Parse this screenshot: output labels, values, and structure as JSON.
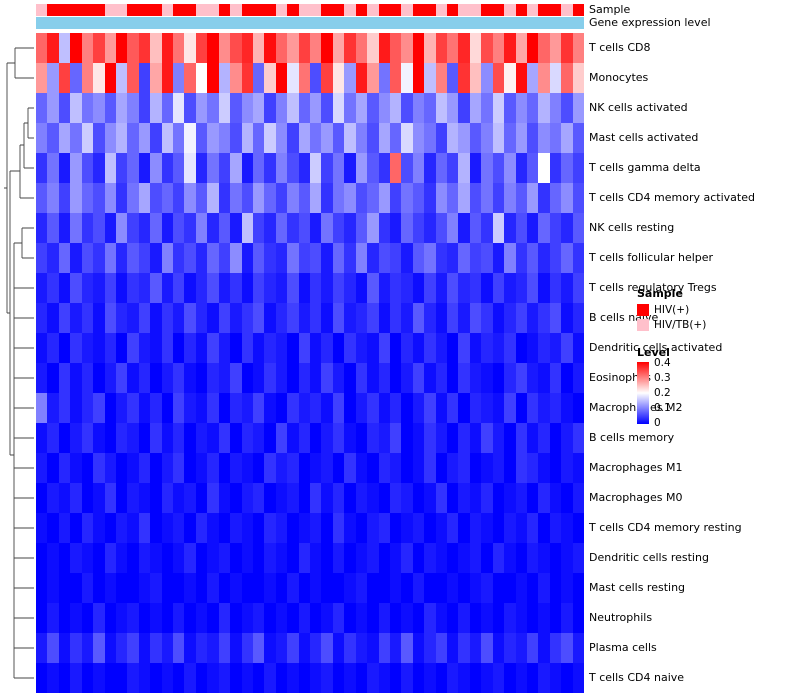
{
  "chart_data": {
    "type": "heatmap",
    "title": "",
    "n_cols": 48,
    "rows": [
      "T cells CD8",
      "Monocytes",
      "NK cells activated",
      "Mast cells activated",
      "T cells gamma delta",
      "T cells CD4 memory activated",
      "NK cells resting",
      "T cells follicular helper",
      "T cells regulatory  Tregs",
      "B cells naive",
      "Dendritic cells activated",
      "Eosinophils",
      "Macrophages M2",
      "B cells memory",
      "Macrophages M1",
      "Macrophages M0",
      "T cells CD4 memory resting",
      "Dendritic cells resting",
      "Mast cells resting",
      "Neutrophils",
      "Plasma cells",
      "T cells CD4 naive"
    ],
    "color_scale": {
      "domain": [
        0,
        0.2,
        0.4
      ],
      "colors": [
        "#0000FF",
        "#FFFFFF",
        "#FF0000"
      ]
    },
    "col_annotations": {
      "sample": {
        "label": "Sample",
        "groups": [
          "HIV(+)",
          "HIV/TB(+)"
        ],
        "colors": [
          "#FF0000",
          "#FFC0CB"
        ],
        "assignment": [
          1,
          0,
          0,
          0,
          0,
          0,
          1,
          1,
          0,
          0,
          0,
          1,
          0,
          0,
          1,
          1,
          0,
          1,
          0,
          0,
          0,
          1,
          0,
          1,
          1,
          0,
          0,
          1,
          0,
          1,
          0,
          0,
          1,
          0,
          0,
          1,
          0,
          1,
          1,
          0,
          0,
          1,
          0,
          1,
          0,
          0,
          1,
          0
        ]
      },
      "gene_expression": {
        "label": "Gene expression level",
        "color": "#87CEEB"
      }
    },
    "legend": {
      "sample_title": "Sample",
      "level_title": "Level",
      "level_ticks": [
        "0.4",
        "0.3",
        "0.2",
        "0.1",
        "0"
      ]
    },
    "values": [
      [
        0.32,
        0.38,
        0.15,
        0.42,
        0.3,
        0.35,
        0.28,
        0.4,
        0.33,
        0.36,
        0.25,
        0.38,
        0.31,
        0.22,
        0.35,
        0.41,
        0.29,
        0.34,
        0.37,
        0.26,
        0.39,
        0.32,
        0.28,
        0.35,
        0.3,
        0.43,
        0.27,
        0.36,
        0.31,
        0.24,
        0.38,
        0.33,
        0.29,
        0.4,
        0.26,
        0.35,
        0.31,
        0.37,
        0.23,
        0.34,
        0.3,
        0.38,
        0.27,
        0.41,
        0.32,
        0.28,
        0.36,
        0.3
      ],
      [
        0.28,
        0.12,
        0.35,
        0.08,
        0.3,
        0.22,
        0.4,
        0.15,
        0.33,
        0.05,
        0.27,
        0.38,
        0.1,
        0.32,
        0.2,
        0.45,
        0.14,
        0.29,
        0.36,
        0.08,
        0.24,
        0.4,
        0.18,
        0.31,
        0.06,
        0.35,
        0.22,
        0.12,
        0.38,
        0.28,
        0.09,
        0.33,
        0.19,
        0.41,
        0.15,
        0.3,
        0.07,
        0.36,
        0.25,
        0.11,
        0.34,
        0.21,
        0.39,
        0.13,
        0.29,
        0.17,
        0.32,
        0.24
      ],
      [
        0.08,
        0.12,
        0.06,
        0.15,
        0.09,
        0.11,
        0.07,
        0.13,
        0.1,
        0.05,
        0.14,
        0.08,
        0.18,
        0.06,
        0.12,
        0.09,
        0.16,
        0.07,
        0.11,
        0.13,
        0.05,
        0.1,
        0.15,
        0.08,
        0.12,
        0.06,
        0.17,
        0.09,
        0.13,
        0.07,
        0.11,
        0.14,
        0.06,
        0.1,
        0.08,
        0.15,
        0.12,
        0.05,
        0.13,
        0.09,
        0.16,
        0.07,
        0.11,
        0.08,
        0.14,
        0.1,
        0.06,
        0.12
      ],
      [
        0.1,
        0.07,
        0.13,
        0.09,
        0.16,
        0.06,
        0.11,
        0.14,
        0.08,
        0.12,
        0.05,
        0.15,
        0.09,
        0.19,
        0.07,
        0.12,
        0.1,
        0.06,
        0.14,
        0.08,
        0.16,
        0.11,
        0.05,
        0.13,
        0.09,
        0.12,
        0.07,
        0.15,
        0.1,
        0.06,
        0.13,
        0.08,
        0.17,
        0.11,
        0.09,
        0.05,
        0.14,
        0.12,
        0.07,
        0.1,
        0.15,
        0.08,
        0.12,
        0.06,
        0.11,
        0.09,
        0.13,
        0.07
      ],
      [
        0.04,
        0.09,
        0.02,
        0.12,
        0.06,
        0.03,
        0.15,
        0.05,
        0.08,
        0.02,
        0.11,
        0.04,
        0.07,
        0.18,
        0.03,
        0.09,
        0.05,
        0.13,
        0.02,
        0.08,
        0.04,
        0.1,
        0.06,
        0.03,
        0.16,
        0.05,
        0.09,
        0.02,
        0.12,
        0.07,
        0.04,
        0.32,
        0.06,
        0.1,
        0.03,
        0.08,
        0.05,
        0.14,
        0.02,
        0.09,
        0.06,
        0.11,
        0.03,
        0.07,
        0.2,
        0.04,
        0.08,
        0.05
      ],
      [
        0.07,
        0.1,
        0.05,
        0.12,
        0.08,
        0.06,
        0.11,
        0.04,
        0.09,
        0.13,
        0.06,
        0.08,
        0.05,
        0.11,
        0.07,
        0.14,
        0.04,
        0.09,
        0.06,
        0.12,
        0.08,
        0.05,
        0.1,
        0.07,
        0.13,
        0.04,
        0.09,
        0.11,
        0.06,
        0.08,
        0.12,
        0.05,
        0.09,
        0.07,
        0.04,
        0.11,
        0.08,
        0.13,
        0.06,
        0.09,
        0.05,
        0.1,
        0.07,
        0.12,
        0.04,
        0.08,
        0.11,
        0.06
      ],
      [
        0.03,
        0.07,
        0.02,
        0.09,
        0.04,
        0.06,
        0.02,
        0.11,
        0.05,
        0.03,
        0.08,
        0.02,
        0.06,
        0.04,
        0.1,
        0.03,
        0.07,
        0.02,
        0.15,
        0.05,
        0.03,
        0.08,
        0.04,
        0.06,
        0.02,
        0.09,
        0.05,
        0.03,
        0.07,
        0.12,
        0.04,
        0.02,
        0.08,
        0.05,
        0.03,
        0.06,
        0.1,
        0.02,
        0.07,
        0.04,
        0.16,
        0.03,
        0.06,
        0.02,
        0.08,
        0.05,
        0.03,
        0.07
      ],
      [
        0.05,
        0.03,
        0.08,
        0.02,
        0.06,
        0.04,
        0.09,
        0.03,
        0.07,
        0.05,
        0.02,
        0.1,
        0.04,
        0.06,
        0.03,
        0.08,
        0.05,
        0.11,
        0.02,
        0.07,
        0.04,
        0.03,
        0.09,
        0.05,
        0.06,
        0.02,
        0.08,
        0.04,
        0.1,
        0.03,
        0.06,
        0.05,
        0.02,
        0.07,
        0.09,
        0.04,
        0.03,
        0.08,
        0.05,
        0.06,
        0.02,
        0.1,
        0.04,
        0.07,
        0.03,
        0.05,
        0.08,
        0.04
      ],
      [
        0.02,
        0.04,
        0.01,
        0.06,
        0.03,
        0.02,
        0.05,
        0.01,
        0.04,
        0.03,
        0.07,
        0.02,
        0.05,
        0.01,
        0.03,
        0.06,
        0.02,
        0.04,
        0.01,
        0.05,
        0.03,
        0.02,
        0.06,
        0.01,
        0.04,
        0.02,
        0.05,
        0.03,
        0.01,
        0.07,
        0.02,
        0.04,
        0.03,
        0.01,
        0.05,
        0.02,
        0.06,
        0.03,
        0.04,
        0.01,
        0.05,
        0.02,
        0.03,
        0.06,
        0.01,
        0.04,
        0.02,
        0.05
      ],
      [
        0.03,
        0.01,
        0.05,
        0.02,
        0.04,
        0.01,
        0.06,
        0.03,
        0.02,
        0.05,
        0.01,
        0.04,
        0.02,
        0.06,
        0.03,
        0.01,
        0.05,
        0.02,
        0.04,
        0.06,
        0.01,
        0.03,
        0.05,
        0.02,
        0.04,
        0.01,
        0.06,
        0.02,
        0.03,
        0.05,
        0.01,
        0.04,
        0.02,
        0.07,
        0.03,
        0.01,
        0.05,
        0.02,
        0.06,
        0.04,
        0.01,
        0.03,
        0.05,
        0.02,
        0.04,
        0.06,
        0.01,
        0.03
      ],
      [
        0.01,
        0.03,
        0.0,
        0.04,
        0.02,
        0.01,
        0.03,
        0.0,
        0.05,
        0.02,
        0.01,
        0.04,
        0.0,
        0.03,
        0.01,
        0.05,
        0.02,
        0.0,
        0.04,
        0.01,
        0.03,
        0.02,
        0.0,
        0.05,
        0.01,
        0.03,
        0.0,
        0.04,
        0.02,
        0.01,
        0.05,
        0.0,
        0.03,
        0.01,
        0.04,
        0.02,
        0.0,
        0.05,
        0.01,
        0.03,
        0.02,
        0.04,
        0.0,
        0.01,
        0.03,
        0.02,
        0.05,
        0.01
      ],
      [
        0.02,
        0.0,
        0.04,
        0.01,
        0.03,
        0.0,
        0.02,
        0.05,
        0.01,
        0.03,
        0.0,
        0.02,
        0.04,
        0.01,
        0.0,
        0.03,
        0.02,
        0.05,
        0.0,
        0.01,
        0.04,
        0.02,
        0.0,
        0.03,
        0.01,
        0.05,
        0.02,
        0.0,
        0.04,
        0.01,
        0.03,
        0.0,
        0.02,
        0.05,
        0.01,
        0.03,
        0.0,
        0.04,
        0.02,
        0.01,
        0.0,
        0.03,
        0.05,
        0.02,
        0.01,
        0.04,
        0.0,
        0.02
      ],
      [
        0.1,
        0.02,
        0.04,
        0.01,
        0.03,
        0.05,
        0.0,
        0.02,
        0.04,
        0.01,
        0.03,
        0.0,
        0.05,
        0.02,
        0.01,
        0.04,
        0.0,
        0.03,
        0.02,
        0.05,
        0.01,
        0.0,
        0.04,
        0.02,
        0.03,
        0.01,
        0.05,
        0.0,
        0.02,
        0.04,
        0.01,
        0.03,
        0.0,
        0.02,
        0.05,
        0.01,
        0.04,
        0.0,
        0.03,
        0.02,
        0.01,
        0.05,
        0.0,
        0.04,
        0.02,
        0.03,
        0.01,
        0.0
      ],
      [
        0.01,
        0.03,
        0.0,
        0.02,
        0.04,
        0.01,
        0.0,
        0.03,
        0.02,
        0.0,
        0.04,
        0.01,
        0.03,
        0.0,
        0.02,
        0.01,
        0.04,
        0.0,
        0.03,
        0.02,
        0.0,
        0.05,
        0.01,
        0.03,
        0.0,
        0.02,
        0.04,
        0.01,
        0.0,
        0.03,
        0.02,
        0.05,
        0.0,
        0.01,
        0.04,
        0.02,
        0.0,
        0.03,
        0.01,
        0.05,
        0.02,
        0.0,
        0.04,
        0.01,
        0.03,
        0.0,
        0.02,
        0.04
      ],
      [
        0.02,
        0.0,
        0.03,
        0.01,
        0.0,
        0.04,
        0.02,
        0.0,
        0.01,
        0.03,
        0.0,
        0.02,
        0.04,
        0.0,
        0.01,
        0.03,
        0.0,
        0.02,
        0.01,
        0.0,
        0.04,
        0.02,
        0.03,
        0.0,
        0.01,
        0.02,
        0.0,
        0.04,
        0.01,
        0.0,
        0.03,
        0.02,
        0.0,
        0.01,
        0.04,
        0.0,
        0.02,
        0.03,
        0.0,
        0.01,
        0.02,
        0.0,
        0.04,
        0.03,
        0.01,
        0.0,
        0.02,
        0.01
      ],
      [
        0.0,
        0.02,
        0.01,
        0.03,
        0.0,
        0.01,
        0.04,
        0.0,
        0.02,
        0.01,
        0.0,
        0.03,
        0.01,
        0.02,
        0.0,
        0.04,
        0.01,
        0.0,
        0.02,
        0.03,
        0.0,
        0.01,
        0.02,
        0.0,
        0.04,
        0.01,
        0.03,
        0.0,
        0.02,
        0.01,
        0.0,
        0.03,
        0.02,
        0.0,
        0.01,
        0.04,
        0.0,
        0.02,
        0.01,
        0.03,
        0.0,
        0.01,
        0.02,
        0.0,
        0.03,
        0.01,
        0.0,
        0.02
      ],
      [
        0.01,
        0.0,
        0.02,
        0.0,
        0.03,
        0.01,
        0.0,
        0.02,
        0.01,
        0.04,
        0.0,
        0.01,
        0.02,
        0.0,
        0.03,
        0.01,
        0.0,
        0.02,
        0.01,
        0.0,
        0.03,
        0.02,
        0.0,
        0.01,
        0.02,
        0.0,
        0.04,
        0.01,
        0.0,
        0.02,
        0.03,
        0.0,
        0.01,
        0.02,
        0.0,
        0.01,
        0.03,
        0.0,
        0.02,
        0.01,
        0.0,
        0.02,
        0.01,
        0.03,
        0.0,
        0.02,
        0.01,
        0.0
      ],
      [
        0.0,
        0.01,
        0.0,
        0.02,
        0.01,
        0.0,
        0.03,
        0.01,
        0.0,
        0.02,
        0.01,
        0.0,
        0.01,
        0.03,
        0.0,
        0.01,
        0.02,
        0.0,
        0.01,
        0.0,
        0.02,
        0.01,
        0.0,
        0.03,
        0.01,
        0.0,
        0.02,
        0.0,
        0.01,
        0.02,
        0.0,
        0.01,
        0.03,
        0.0,
        0.02,
        0.01,
        0.0,
        0.01,
        0.02,
        0.0,
        0.03,
        0.01,
        0.0,
        0.02,
        0.01,
        0.0,
        0.01,
        0.02
      ],
      [
        0.0,
        0.01,
        0.0,
        0.0,
        0.02,
        0.0,
        0.01,
        0.0,
        0.0,
        0.01,
        0.02,
        0.0,
        0.0,
        0.01,
        0.0,
        0.02,
        0.0,
        0.01,
        0.0,
        0.0,
        0.01,
        0.0,
        0.02,
        0.0,
        0.01,
        0.0,
        0.0,
        0.01,
        0.02,
        0.0,
        0.0,
        0.01,
        0.0,
        0.02,
        0.0,
        0.0,
        0.01,
        0.0,
        0.01,
        0.02,
        0.0,
        0.0,
        0.01,
        0.0,
        0.02,
        0.0,
        0.01,
        0.0
      ],
      [
        0.0,
        0.02,
        0.0,
        0.01,
        0.0,
        0.03,
        0.0,
        0.01,
        0.02,
        0.0,
        0.01,
        0.0,
        0.02,
        0.0,
        0.01,
        0.0,
        0.03,
        0.0,
        0.01,
        0.02,
        0.0,
        0.01,
        0.0,
        0.02,
        0.0,
        0.01,
        0.03,
        0.0,
        0.01,
        0.0,
        0.02,
        0.0,
        0.01,
        0.0,
        0.03,
        0.01,
        0.0,
        0.02,
        0.0,
        0.01,
        0.0,
        0.02,
        0.01,
        0.0,
        0.01,
        0.0,
        0.02,
        0.0
      ],
      [
        0.02,
        0.06,
        0.01,
        0.04,
        0.02,
        0.07,
        0.01,
        0.03,
        0.05,
        0.01,
        0.04,
        0.02,
        0.06,
        0.01,
        0.03,
        0.02,
        0.05,
        0.01,
        0.04,
        0.07,
        0.01,
        0.02,
        0.05,
        0.01,
        0.03,
        0.06,
        0.01,
        0.04,
        0.02,
        0.01,
        0.05,
        0.02,
        0.07,
        0.01,
        0.03,
        0.05,
        0.01,
        0.04,
        0.02,
        0.06,
        0.01,
        0.03,
        0.02,
        0.05,
        0.01,
        0.04,
        0.06,
        0.02
      ],
      [
        0.0,
        0.01,
        0.0,
        0.02,
        0.0,
        0.01,
        0.0,
        0.0,
        0.02,
        0.01,
        0.0,
        0.01,
        0.0,
        0.02,
        0.0,
        0.01,
        0.02,
        0.0,
        0.01,
        0.0,
        0.02,
        0.0,
        0.01,
        0.0,
        0.01,
        0.02,
        0.0,
        0.01,
        0.0,
        0.02,
        0.01,
        0.0,
        0.02,
        0.0,
        0.01,
        0.0,
        0.02,
        0.01,
        0.0,
        0.01,
        0.02,
        0.0,
        0.01,
        0.0,
        0.02,
        0.01,
        0.0,
        0.01
      ]
    ]
  }
}
